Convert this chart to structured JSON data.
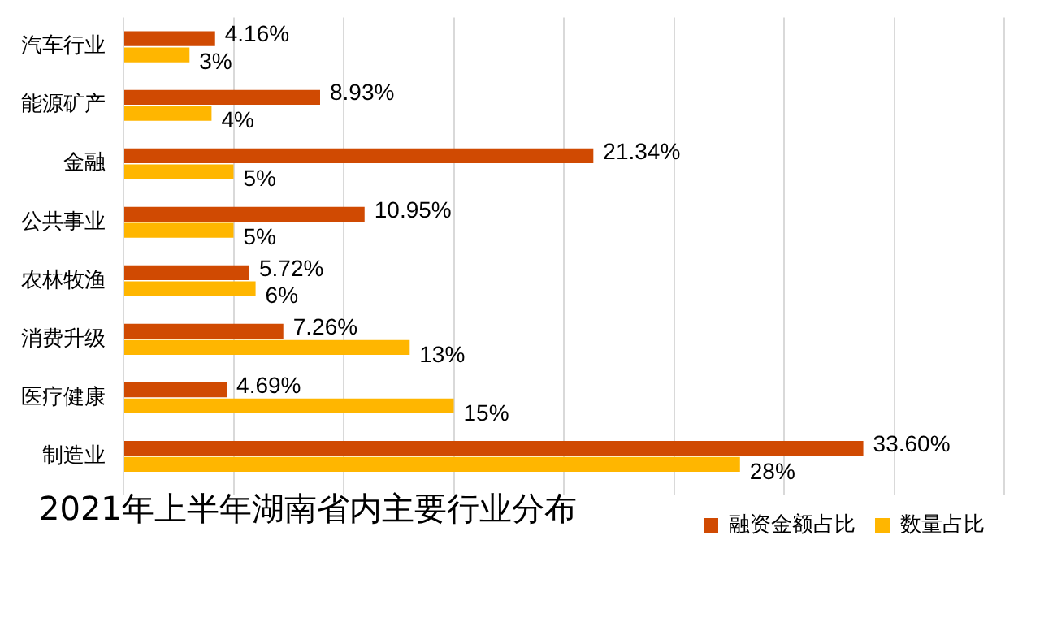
{
  "chart_data": {
    "type": "bar",
    "orientation": "horizontal",
    "title": "2021年上半年湖南省内主要行业分布",
    "categories": [
      "汽车行业",
      "能源矿产",
      "金融",
      "公共事业",
      "农林牧渔",
      "消费升级",
      "医疗健康",
      "制造业"
    ],
    "series": [
      {
        "name": "融资金额占比",
        "color": "#d04a02",
        "values": [
          4.16,
          8.93,
          21.34,
          10.95,
          5.72,
          7.26,
          4.69,
          33.6
        ],
        "value_labels": [
          "4.16%",
          "8.93%",
          "21.34%",
          "10.95%",
          "5.72%",
          "7.26%",
          "4.69%",
          "33.60%"
        ]
      },
      {
        "name": "数量占比",
        "color": "#ffb600",
        "values": [
          3,
          4,
          5,
          5,
          6,
          13,
          15,
          28
        ],
        "value_labels": [
          "3%",
          "4%",
          "5%",
          "5%",
          "6%",
          "13%",
          "15%",
          "28%"
        ]
      }
    ],
    "xlim": [
      0,
      40
    ],
    "xticks": [
      {
        "value": 0,
        "label": null
      },
      {
        "value": 5,
        "label": null
      },
      {
        "value": 10,
        "label": null
      },
      {
        "value": 15,
        "label": null
      },
      {
        "value": 20,
        "label": null
      },
      {
        "value": 25,
        "label": null
      },
      {
        "value": 30,
        "label": null
      },
      {
        "value": 35,
        "label": null
      },
      {
        "value": 40,
        "label": null
      }
    ],
    "tick_labels": "y",
    "grid": "x",
    "legend": "bottom right"
  }
}
